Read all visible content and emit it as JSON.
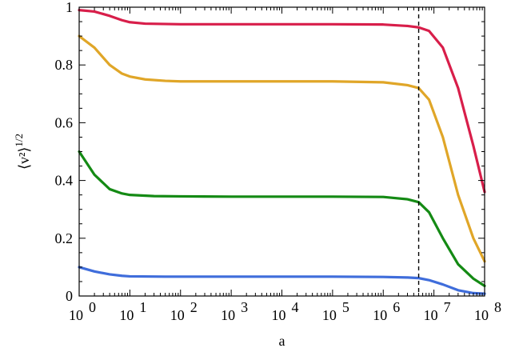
{
  "chart_data": {
    "type": "line",
    "x_scale": "log10",
    "xlim": [
      1,
      100000000
    ],
    "ylim": [
      0,
      1
    ],
    "xlabel": "a",
    "ylabel": "⟨v²⟩^1/2",
    "x_ticks": [
      {
        "value": 1,
        "base": "10",
        "exp": "0"
      },
      {
        "value": 10,
        "base": "10",
        "exp": "1"
      },
      {
        "value": 100,
        "base": "10",
        "exp": "2"
      },
      {
        "value": 1000,
        "base": "10",
        "exp": "3"
      },
      {
        "value": 10000,
        "base": "10",
        "exp": "4"
      },
      {
        "value": 100000,
        "base": "10",
        "exp": "5"
      },
      {
        "value": 1000000,
        "base": "10",
        "exp": "6"
      },
      {
        "value": 10000000,
        "base": "10",
        "exp": "7"
      },
      {
        "value": 100000000,
        "base": "10",
        "exp": "8"
      }
    ],
    "y_ticks": [
      {
        "value": 0,
        "label": "0"
      },
      {
        "value": 0.2,
        "label": "0.2"
      },
      {
        "value": 0.4,
        "label": "0.4"
      },
      {
        "value": 0.6,
        "label": "0.6"
      },
      {
        "value": 0.8,
        "label": "0.8"
      },
      {
        "value": 1,
        "label": "1"
      }
    ],
    "reference_line": {
      "x": 5000000,
      "style": "dashed",
      "color": "#000000"
    },
    "grid": false,
    "legend": "none",
    "series": [
      {
        "color": "#d81e4a",
        "points": [
          [
            1,
            0.99
          ],
          [
            2,
            0.985
          ],
          [
            4,
            0.97
          ],
          [
            7,
            0.955
          ],
          [
            10,
            0.948
          ],
          [
            20,
            0.943
          ],
          [
            100,
            0.941
          ],
          [
            1000,
            0.941
          ],
          [
            100000,
            0.941
          ],
          [
            1000000,
            0.94
          ],
          [
            3000000,
            0.935
          ],
          [
            5000000,
            0.93
          ],
          [
            8000000,
            0.918
          ],
          [
            15000000,
            0.86
          ],
          [
            30000000,
            0.72
          ],
          [
            60000000,
            0.52
          ],
          [
            100000000,
            0.36
          ]
        ]
      },
      {
        "color": "#e0a628",
        "points": [
          [
            1,
            0.9
          ],
          [
            2,
            0.86
          ],
          [
            4,
            0.8
          ],
          [
            7,
            0.77
          ],
          [
            10,
            0.76
          ],
          [
            20,
            0.75
          ],
          [
            50,
            0.745
          ],
          [
            100,
            0.743
          ],
          [
            1000,
            0.743
          ],
          [
            100000,
            0.743
          ],
          [
            1000000,
            0.74
          ],
          [
            3000000,
            0.73
          ],
          [
            5000000,
            0.72
          ],
          [
            8000000,
            0.68
          ],
          [
            15000000,
            0.55
          ],
          [
            30000000,
            0.35
          ],
          [
            60000000,
            0.2
          ],
          [
            100000000,
            0.12
          ]
        ]
      },
      {
        "color": "#148a14",
        "points": [
          [
            1,
            0.5
          ],
          [
            2,
            0.42
          ],
          [
            4,
            0.37
          ],
          [
            7,
            0.355
          ],
          [
            10,
            0.35
          ],
          [
            30,
            0.346
          ],
          [
            100,
            0.345
          ],
          [
            1000,
            0.344
          ],
          [
            100000,
            0.344
          ],
          [
            1000000,
            0.343
          ],
          [
            3000000,
            0.335
          ],
          [
            5000000,
            0.325
          ],
          [
            8000000,
            0.29
          ],
          [
            15000000,
            0.2
          ],
          [
            30000000,
            0.11
          ],
          [
            60000000,
            0.06
          ],
          [
            100000000,
            0.035
          ]
        ]
      },
      {
        "color": "#3f6ddb",
        "points": [
          [
            1,
            0.1
          ],
          [
            2,
            0.085
          ],
          [
            4,
            0.075
          ],
          [
            7,
            0.07
          ],
          [
            10,
            0.068
          ],
          [
            50,
            0.067
          ],
          [
            1000,
            0.067
          ],
          [
            100000,
            0.067
          ],
          [
            1000000,
            0.066
          ],
          [
            3000000,
            0.064
          ],
          [
            5000000,
            0.062
          ],
          [
            8000000,
            0.055
          ],
          [
            15000000,
            0.04
          ],
          [
            30000000,
            0.02
          ],
          [
            60000000,
            0.01
          ],
          [
            100000000,
            0.008
          ]
        ]
      }
    ]
  }
}
